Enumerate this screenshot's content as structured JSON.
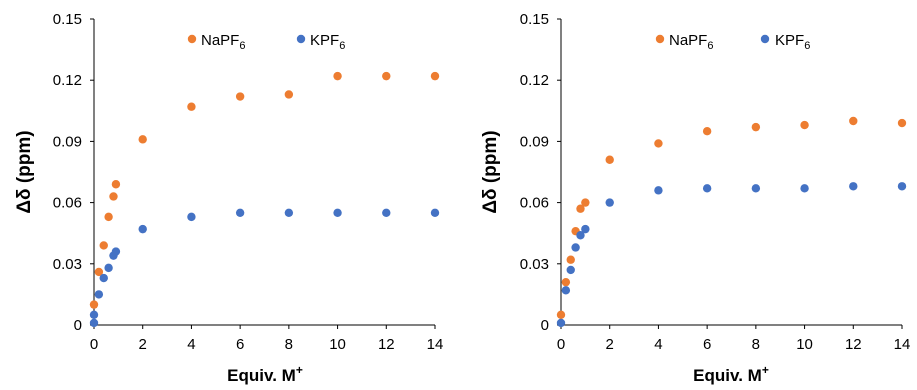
{
  "colors": {
    "nap": "#ED7D31",
    "kp": "#4472C4",
    "axis": "#000000"
  },
  "chart_data": [
    {
      "type": "scatter",
      "xlabel": "Equiv. M",
      "xlabel_sup": "+",
      "ylabel": "Δδ (ppm)",
      "xlim": [
        0,
        14
      ],
      "ylim": [
        0,
        0.15
      ],
      "x_ticks": [
        "0",
        "2",
        "4",
        "6",
        "8",
        "10",
        "12",
        "14"
      ],
      "y_ticks": [
        "0",
        "0.03",
        "0.06",
        "0.09",
        "0.12",
        "0.15"
      ],
      "legend_position": "top",
      "series": [
        {
          "name": "NaPF",
          "name_sub": "6",
          "color": "nap",
          "x": [
            0,
            0.2,
            0.4,
            0.6,
            0.8,
            0.9,
            2,
            4,
            6,
            8,
            10,
            12,
            14
          ],
          "y": [
            0.01,
            0.026,
            0.039,
            0.053,
            0.063,
            0.069,
            0.091,
            0.107,
            0.112,
            0.113,
            0.122,
            0.122,
            0.122
          ]
        },
        {
          "name": "KPF",
          "name_sub": "6",
          "color": "kp",
          "x": [
            0,
            0,
            0.2,
            0.4,
            0.6,
            0.8,
            0.9,
            2,
            4,
            6,
            8,
            10,
            12,
            14
          ],
          "y": [
            0.001,
            0.005,
            0.015,
            0.023,
            0.028,
            0.034,
            0.036,
            0.047,
            0.053,
            0.055,
            0.055,
            0.055,
            0.055,
            0.055
          ]
        }
      ]
    },
    {
      "type": "scatter",
      "xlabel": "Equiv. M",
      "xlabel_sup": "+",
      "ylabel": "Δδ (ppm)",
      "xlim": [
        0,
        14
      ],
      "ylim": [
        0,
        0.15
      ],
      "x_ticks": [
        "0",
        "2",
        "4",
        "6",
        "8",
        "10",
        "12",
        "14"
      ],
      "y_ticks": [
        "0",
        "0.03",
        "0.06",
        "0.09",
        "0.12",
        "0.15"
      ],
      "legend_position": "top",
      "series": [
        {
          "name": "NaPF",
          "name_sub": "6",
          "color": "nap",
          "x": [
            0,
            0.2,
            0.4,
            0.6,
            0.8,
            1.0,
            2,
            4,
            6,
            8,
            10,
            12,
            14
          ],
          "y": [
            0.005,
            0.021,
            0.032,
            0.046,
            0.057,
            0.06,
            0.081,
            0.089,
            0.095,
            0.097,
            0.098,
            0.1,
            0.099
          ]
        },
        {
          "name": "KPF",
          "name_sub": "6",
          "color": "kp",
          "x": [
            0,
            0.2,
            0.4,
            0.6,
            0.8,
            1.0,
            2,
            4,
            6,
            8,
            10,
            12,
            14
          ],
          "y": [
            0.001,
            0.017,
            0.027,
            0.038,
            0.044,
            0.047,
            0.06,
            0.066,
            0.067,
            0.067,
            0.067,
            0.068,
            0.068
          ]
        }
      ]
    }
  ]
}
